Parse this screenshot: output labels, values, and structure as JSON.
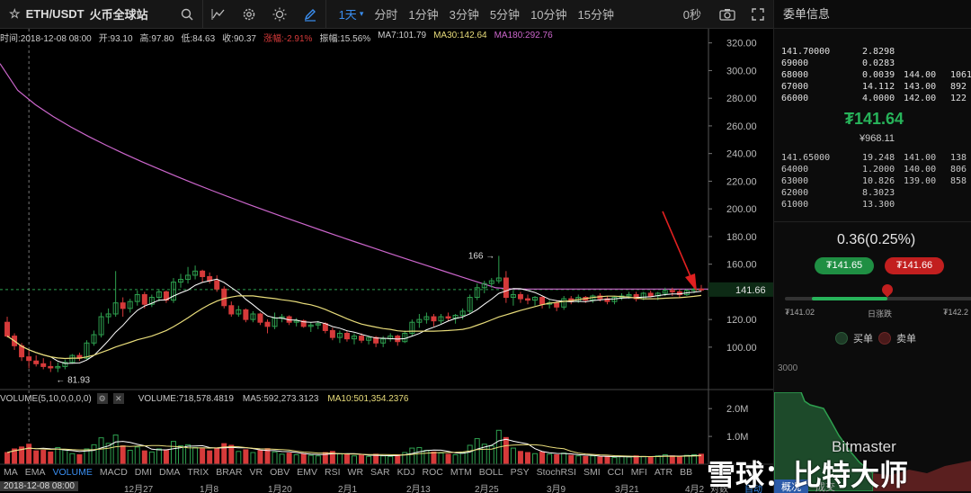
{
  "toolbar": {
    "symbol": "ETH/USDT",
    "exchange": "火币全球站",
    "intervals": [
      "1天",
      "分时",
      "1分钟",
      "3分钟",
      "5分钟",
      "10分钟",
      "15分钟"
    ],
    "active_interval": "1天",
    "timer": "0秒",
    "icons": [
      "star-icon",
      "search-icon",
      "indicator-icon",
      "settings-icon",
      "theme-icon",
      "draw-icon",
      "camera-icon",
      "fullscreen-icon"
    ]
  },
  "info": {
    "time": "时间:2018-12-08 08:00",
    "open": "开:93.10",
    "high": "高:97.80",
    "low": "低:84.63",
    "close": "收:90.37",
    "change": "涨幅:-2.91%",
    "amplitude": "振幅:15.56%",
    "ma7": "MA7:101.79",
    "ma30": "MA30:142.64",
    "ma180": "MA180:292.76"
  },
  "volume_info": {
    "label": "VOLUME(5,10,0,0,0,0)",
    "volume": "VOLUME:718,578.4819",
    "ma5": "MA5:592,273.3123",
    "ma10": "MA10:501,354.2376"
  },
  "price_axis": [
    "320.00",
    "300.00",
    "280.00",
    "260.00",
    "240.00",
    "220.00",
    "200.00",
    "180.00",
    "160.00",
    "140.00",
    "120.00",
    "100.00"
  ],
  "current_price_label": "141.66",
  "volume_axis": [
    "2.0M",
    "1.0M"
  ],
  "annotations": {
    "high": "166",
    "low": "81.93"
  },
  "indicators": [
    "MA",
    "EMA",
    "VOLUME",
    "MACD",
    "DMI",
    "DMA",
    "TRIX",
    "BRAR",
    "VR",
    "OBV",
    "EMV",
    "RSI",
    "WR",
    "SAR",
    "KDJ",
    "ROC",
    "MTM",
    "BOLL",
    "PSY",
    "StochRSI",
    "SMI",
    "CCI",
    "MFI",
    "ATR",
    "BB"
  ],
  "active_indicator": "VOLUME",
  "time_axis": {
    "cursor": "2018-12-08 08:00",
    "labels": [
      "12月27",
      "1月8",
      "1月20",
      "2月1",
      "2月13",
      "2月25",
      "3月9",
      "3月21",
      "4月2"
    ],
    "footer": [
      "对数",
      "自动",
      "概况",
      "成交"
    ]
  },
  "orderbook": {
    "title": "委单信息",
    "asks": [
      {
        "price": "141.70000",
        "amount": "2.8298",
        "price2": "",
        "amount2": ""
      },
      {
        "price": "69000",
        "amount": "0.0283",
        "price2": "",
        "amount2": ""
      },
      {
        "price": "68000",
        "amount": "0.0039",
        "price2": "144.00",
        "amount2": "1061"
      },
      {
        "price": "67000",
        "amount": "14.112",
        "price2": "143.00",
        "amount2": "892"
      },
      {
        "price": "66000",
        "amount": "4.0000",
        "price2": "142.00",
        "amount2": "122"
      }
    ],
    "last_price": "₮141.64",
    "last_cny": "¥968.11",
    "bids": [
      {
        "price": "141.65000",
        "amount": "19.248",
        "price2": "141.00",
        "amount2": "138"
      },
      {
        "price": "64000",
        "amount": "1.2000",
        "price2": "140.00",
        "amount2": "806"
      },
      {
        "price": "63000",
        "amount": "10.826",
        "price2": "139.00",
        "amount2": "858"
      },
      {
        "price": "62000",
        "amount": "8.3023",
        "price2": "",
        "amount2": ""
      },
      {
        "price": "61000",
        "amount": "13.300",
        "price2": "",
        "amount2": ""
      }
    ],
    "spread": "0.36(0.25%)",
    "buy_price": "₮141.65",
    "sell_price": "₮141.66",
    "range_low": "₮141.02",
    "range_label": "日涨跌",
    "range_high": "₮142.2",
    "legend_buy": "买单",
    "legend_sell": "卖单",
    "depth_value": "3000"
  },
  "watermark": {
    "text": "雪球：比特大师",
    "sub": "Bitmaster"
  },
  "colors": {
    "up": "#2ea04f",
    "down": "#d63a3a",
    "ma7": "#ffffff",
    "ma30": "#e8dc7a",
    "ma180": "#cc66cc",
    "accent": "#3a8ef0"
  },
  "chart_data": {
    "type": "candlestick",
    "ylim": [
      70,
      325
    ],
    "candles": [
      [
        118,
        122,
        107,
        108
      ],
      [
        108,
        110,
        98,
        101
      ],
      [
        101,
        103,
        90,
        93
      ],
      [
        93,
        97.8,
        84.63,
        90.37
      ],
      [
        90,
        94,
        86,
        88
      ],
      [
        88,
        92,
        84,
        86
      ],
      [
        86,
        90,
        82,
        85
      ],
      [
        85,
        89,
        81.93,
        86
      ],
      [
        86,
        91,
        84,
        89
      ],
      [
        89,
        95,
        88,
        94
      ],
      [
        94,
        96,
        90,
        92
      ],
      [
        92,
        105,
        91,
        103
      ],
      [
        103,
        112,
        101,
        109
      ],
      [
        109,
        125,
        107,
        122
      ],
      [
        122,
        128,
        117,
        124
      ],
      [
        124,
        155,
        122,
        132
      ],
      [
        132,
        136,
        122,
        128
      ],
      [
        128,
        135,
        125,
        133
      ],
      [
        133,
        141,
        130,
        138
      ],
      [
        138,
        140,
        128,
        131
      ],
      [
        131,
        138,
        129,
        136
      ],
      [
        136,
        142,
        133,
        140
      ],
      [
        140,
        141,
        132,
        134
      ],
      [
        134,
        150,
        132,
        147
      ],
      [
        147,
        153,
        143,
        149
      ],
      [
        149,
        158,
        146,
        152
      ],
      [
        152,
        159,
        149,
        155
      ],
      [
        155,
        156,
        147,
        151
      ],
      [
        151,
        154,
        146,
        148
      ],
      [
        148,
        152,
        140,
        142
      ],
      [
        142,
        144,
        128,
        130
      ],
      [
        130,
        133,
        122,
        124
      ],
      [
        124,
        130,
        122,
        127
      ],
      [
        127,
        128,
        118,
        120
      ],
      [
        120,
        126,
        118,
        124
      ],
      [
        124,
        125,
        116,
        118
      ],
      [
        118,
        120,
        110,
        115
      ],
      [
        115,
        125,
        113,
        121
      ],
      [
        121,
        124,
        118,
        122
      ],
      [
        122,
        123,
        116,
        118
      ],
      [
        118,
        121,
        115,
        119
      ],
      [
        119,
        120,
        114,
        115
      ],
      [
        115,
        118,
        111,
        116
      ],
      [
        116,
        119,
        113,
        117
      ],
      [
        117,
        118,
        110,
        112
      ],
      [
        112,
        114,
        105,
        107
      ],
      [
        107,
        112,
        103,
        110
      ],
      [
        110,
        112,
        104,
        106
      ],
      [
        106,
        110,
        102,
        108
      ],
      [
        108,
        110,
        103,
        105
      ],
      [
        105,
        108,
        102,
        107
      ],
      [
        107,
        108,
        100,
        103
      ],
      [
        103,
        108,
        100,
        106
      ],
      [
        106,
        110,
        104,
        108
      ],
      [
        108,
        109,
        101,
        104
      ],
      [
        104,
        112,
        103,
        110
      ],
      [
        110,
        120,
        108,
        118
      ],
      [
        118,
        124,
        114,
        120
      ],
      [
        120,
        125,
        117,
        122
      ],
      [
        122,
        124,
        115,
        119
      ],
      [
        119,
        124,
        117,
        122
      ],
      [
        122,
        125,
        119,
        121
      ],
      [
        121,
        124,
        117,
        123
      ],
      [
        123,
        128,
        120,
        126
      ],
      [
        126,
        138,
        124,
        136
      ],
      [
        136,
        146,
        134,
        143
      ],
      [
        143,
        148,
        139,
        146
      ],
      [
        146,
        150,
        143,
        148
      ],
      [
        148,
        166,
        146,
        150
      ],
      [
        150,
        155,
        132,
        136
      ],
      [
        136,
        141,
        130,
        138
      ],
      [
        138,
        140,
        132,
        135
      ],
      [
        135,
        138,
        131,
        134
      ],
      [
        134,
        137,
        130,
        136
      ],
      [
        136,
        137,
        128,
        131
      ],
      [
        131,
        134,
        128,
        132
      ],
      [
        132,
        134,
        126,
        129
      ],
      [
        129,
        137,
        127,
        135
      ],
      [
        135,
        137,
        131,
        133
      ],
      [
        133,
        138,
        132,
        136
      ],
      [
        136,
        137,
        132,
        134
      ],
      [
        134,
        138,
        132,
        137
      ],
      [
        137,
        139,
        133,
        135
      ],
      [
        135,
        137,
        131,
        133
      ],
      [
        133,
        137,
        131,
        136
      ],
      [
        136,
        139,
        134,
        137
      ],
      [
        137,
        140,
        135,
        138
      ],
      [
        138,
        140,
        133,
        135
      ],
      [
        135,
        140,
        134,
        139
      ],
      [
        139,
        141,
        136,
        137
      ],
      [
        137,
        140,
        134,
        139
      ],
      [
        139,
        143,
        137,
        141
      ],
      [
        141,
        143,
        137,
        140
      ],
      [
        140,
        142,
        136,
        138
      ],
      [
        138,
        142,
        137,
        141
      ],
      [
        141,
        144,
        139,
        142
      ],
      [
        142,
        145,
        140,
        141.66
      ]
    ],
    "volume": [
      0.42,
      0.55,
      0.62,
      0.72,
      0.48,
      0.5,
      0.44,
      0.6,
      0.52,
      0.38,
      0.34,
      0.55,
      0.7,
      0.95,
      0.75,
      1.05,
      0.66,
      0.5,
      0.62,
      0.48,
      0.44,
      0.55,
      0.5,
      0.82,
      0.66,
      0.7,
      0.6,
      0.55,
      0.48,
      0.58,
      0.74,
      0.68,
      0.46,
      0.52,
      0.42,
      0.5,
      0.56,
      0.44,
      0.36,
      0.4,
      0.34,
      0.38,
      0.32,
      0.3,
      0.42,
      0.46,
      0.38,
      0.34,
      0.3,
      0.32,
      0.28,
      0.36,
      0.3,
      0.28,
      0.34,
      0.42,
      0.58,
      0.6,
      0.5,
      0.44,
      0.4,
      0.36,
      0.34,
      0.42,
      0.68,
      0.92,
      0.72,
      0.66,
      1.22,
      0.96,
      0.58,
      0.46,
      0.42,
      0.38,
      0.44,
      0.36,
      0.34,
      0.4,
      0.32,
      0.3,
      0.28,
      0.3,
      0.26,
      0.28,
      0.24,
      0.28,
      0.26,
      0.3,
      0.28,
      0.26,
      0.3,
      0.34,
      0.3,
      0.26,
      0.32,
      0.34,
      0.36
    ]
  }
}
